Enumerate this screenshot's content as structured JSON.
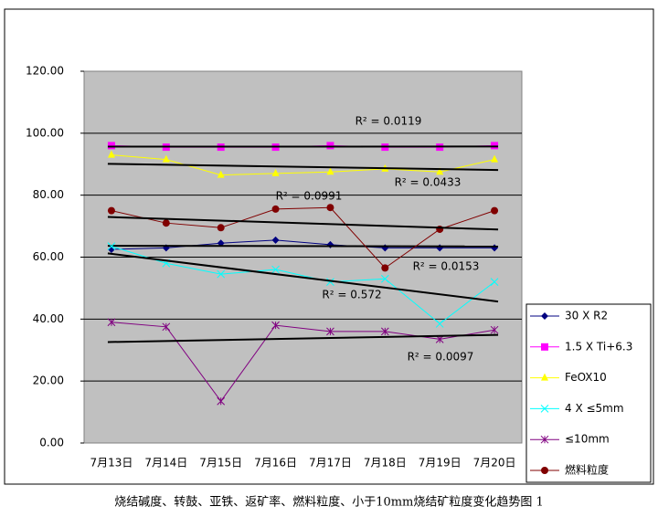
{
  "chart_data": {
    "type": "line",
    "categories": [
      "7月13日",
      "7月14日",
      "7月15日",
      "7月16日",
      "7月17日",
      "7月18日",
      "7月19日",
      "7月20日"
    ],
    "series": [
      {
        "name": "30 X R2",
        "color": "#000080",
        "marker": "diamond",
        "values": [
          62.5,
          63,
          64.5,
          65.5,
          64,
          63,
          63,
          63
        ]
      },
      {
        "name": "1.5 X Ti+6.3",
        "color": "#ff00ff",
        "marker": "square",
        "values": [
          96,
          95.5,
          95.5,
          95.5,
          96,
          95.5,
          95.5,
          96
        ]
      },
      {
        "name": "FeOX10",
        "color": "#ffff00",
        "marker": "triangle",
        "values": [
          93,
          91.5,
          86.5,
          87,
          87.5,
          88.5,
          87.5,
          91.5
        ]
      },
      {
        "name": "4 X ≤5mm",
        "color": "#00ffff",
        "marker": "cross",
        "values": [
          63.5,
          58,
          54.5,
          56,
          52,
          53,
          38.5,
          52
        ]
      },
      {
        "name": "≤10mm",
        "color": "#800080",
        "marker": "star",
        "values": [
          39,
          37.5,
          13.5,
          38,
          36,
          36,
          33.5,
          36.5
        ]
      },
      {
        "name": "燃料粒度",
        "color": "#800000",
        "marker": "circle",
        "values": [
          75,
          71,
          69.5,
          75.5,
          76,
          56.5,
          69,
          75
        ]
      }
    ],
    "annotations": [
      "R² = 0.0119",
      "R² = 0.0433",
      "R² = 0.0991",
      "R² = 0.0153",
      "R² = 0.572",
      "R² = 0.0097"
    ],
    "ylim": [
      0,
      120
    ],
    "yticks": [
      {
        "value": 0,
        "label": "0.00"
      },
      {
        "value": 20,
        "label": "20.00"
      },
      {
        "value": 40,
        "label": "40.00"
      },
      {
        "value": 60,
        "label": "60.00"
      },
      {
        "value": 80,
        "label": "80.00"
      },
      {
        "value": 100,
        "label": "100.00"
      },
      {
        "value": 120,
        "label": "120.00"
      }
    ],
    "grid": true,
    "trendline": true,
    "legend": "right",
    "caption": "烧结碱度、转鼓、亚铁、返矿率、燃料粒度、小于10mm烧结矿粒度变化趋势图 1"
  }
}
